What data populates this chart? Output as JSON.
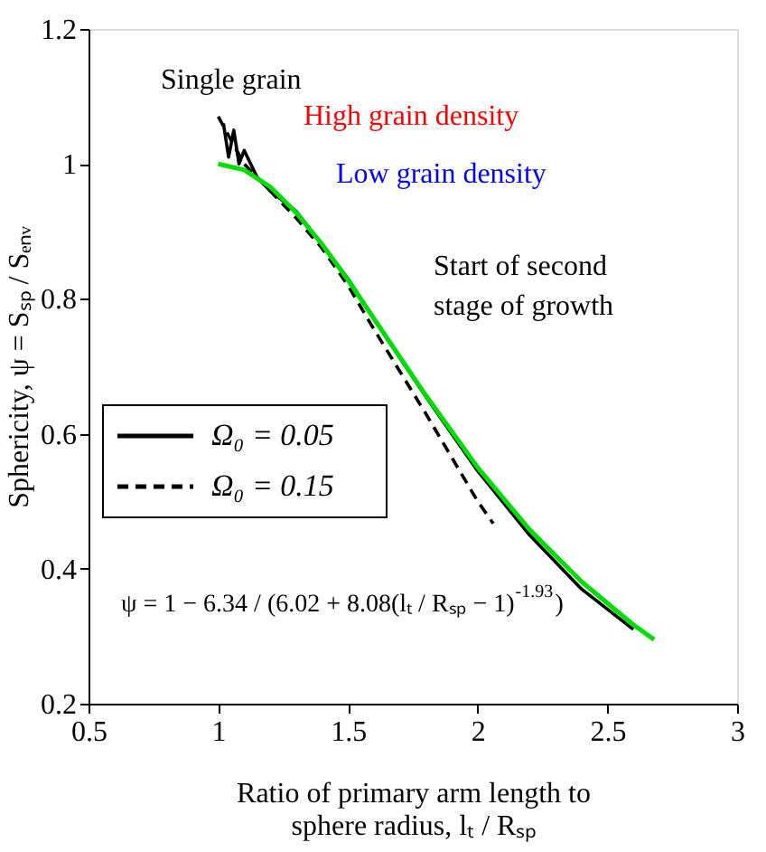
{
  "chart_data": {
    "type": "line",
    "xlabel": "Ratio of primary arm length to\nsphere radius, lₜ / Rₛₚ",
    "ylabel": "Sphericity, ψ = Sₛₚ / Sₑₙᵥ",
    "xlim": [
      0.5,
      3
    ],
    "xticks": [
      0.5,
      1,
      1.5,
      2,
      2.5,
      3
    ],
    "ylim": [
      0.2,
      1.2
    ],
    "yticks": [
      0.2,
      0.4,
      0.6,
      0.8,
      1,
      1.2
    ],
    "grid": false,
    "legend": "left",
    "series": [
      {
        "name": "Ω₀ = 0.05",
        "color": "#000000",
        "line_style": "solid",
        "x": [
          1.02,
          1.04,
          1.06,
          1.08,
          1.1,
          1.15,
          1.2,
          1.3,
          1.4,
          1.5,
          1.6,
          1.8,
          2.0,
          2.2,
          2.4,
          2.6
        ],
        "values": [
          1.06,
          1.01,
          1.05,
          1.0,
          1.02,
          0.98,
          0.96,
          0.93,
          0.88,
          0.83,
          0.77,
          0.655,
          0.545,
          0.45,
          0.37,
          0.31
        ]
      },
      {
        "name": "Ω₀ = 0.15",
        "color": "#000000",
        "line_style": "dashed",
        "x": [
          1.0,
          1.1,
          1.2,
          1.3,
          1.4,
          1.5,
          1.6,
          1.8,
          2.0,
          2.06
        ],
        "values": [
          1.07,
          1.0,
          0.96,
          0.92,
          0.875,
          0.82,
          0.755,
          0.63,
          0.5,
          0.467
        ]
      },
      {
        "color": "#00dd00",
        "line_style": "solid",
        "x": [
          1.0,
          1.1,
          1.2,
          1.3,
          1.4,
          1.5,
          1.6,
          1.8,
          2.0,
          2.2,
          2.4,
          2.6,
          2.68
        ],
        "values": [
          1.0,
          0.991,
          0.966,
          0.928,
          0.881,
          0.828,
          0.771,
          0.657,
          0.55,
          0.458,
          0.381,
          0.317,
          0.295
        ]
      }
    ],
    "annotations": [
      "Single grain",
      "High grain density",
      "Low grain density",
      "Start of second stage of growth",
      "ψ = 1 − 6.34 / (6.02 + 8.08(lₜ / Rₛₚ − 1)$^{-1.93}$)"
    ]
  }
}
